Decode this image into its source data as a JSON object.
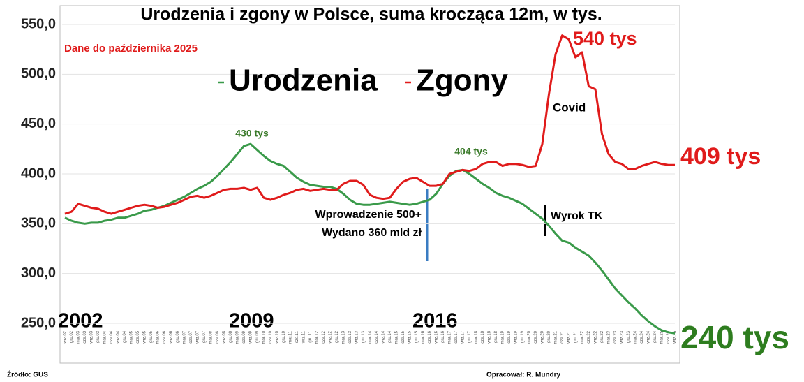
{
  "chart_data": {
    "type": "line",
    "title": "Urodzenia i zgony w Polsce, suma krocząca 12m, w tys.",
    "subtitle": "Dane do października 2025",
    "categories": [
      "wrz.02",
      "gru.02",
      "mar.03",
      "cze.03",
      "wrz.03",
      "gru.03",
      "mar.04",
      "cze.04",
      "wrz.04",
      "gru.04",
      "mar.05",
      "cze.05",
      "wrz.05",
      "gru.05",
      "mar.06",
      "cze.06",
      "wrz.06",
      "gru.06",
      "mar.07",
      "cze.07",
      "wrz.07",
      "gru.07",
      "mar.08",
      "cze.08",
      "wrz.08",
      "gru.08",
      "mar.09",
      "cze.09",
      "wrz.09",
      "gru.09",
      "mar.10",
      "cze.10",
      "wrz.10",
      "gru.10",
      "mar.11",
      "cze.11",
      "wrz.11",
      "gru.11",
      "mar.12",
      "cze.12",
      "wrz.12",
      "gru.12",
      "mar.13",
      "cze.13",
      "wrz.13",
      "gru.13",
      "mar.14",
      "cze.14",
      "wrz.14",
      "gru.14",
      "mar.15",
      "cze.15",
      "wrz.15",
      "gru.15",
      "mar.16",
      "cze.16",
      "wrz.16",
      "gru.16",
      "mar.17",
      "cze.17",
      "wrz.17",
      "gru.17",
      "mar.18",
      "cze.18",
      "wrz.18",
      "gru.18",
      "mar.19",
      "cze.19",
      "wrz.19",
      "gru.19",
      "mar.20",
      "cze.20",
      "wrz.20",
      "gru.20",
      "mar.21",
      "cze.21",
      "wrz.21",
      "gru.21",
      "mar.22",
      "cze.22",
      "wrz.22",
      "gru.22",
      "mar.23",
      "cze.23",
      "wrz.23",
      "gru.23",
      "mar.24",
      "cze.24",
      "wrz.24",
      "gru.24",
      "mar.25",
      "cze.25",
      "wrz.25"
    ],
    "series": [
      {
        "name": "Urodzenia",
        "color": "#3a9a4a",
        "values": [
          356,
          353,
          351,
          350,
          351,
          351,
          353,
          354,
          356,
          356,
          358,
          360,
          363,
          364,
          366,
          368,
          371,
          374,
          377,
          381,
          385,
          388,
          392,
          398,
          405,
          412,
          420,
          428,
          430,
          424,
          418,
          413,
          410,
          408,
          402,
          396,
          392,
          389,
          388,
          387,
          387,
          385,
          380,
          374,
          370,
          369,
          369,
          370,
          371,
          372,
          371,
          370,
          369,
          370,
          372,
          374,
          380,
          390,
          398,
          403,
          404,
          400,
          395,
          390,
          386,
          381,
          378,
          376,
          373,
          370,
          365,
          360,
          355,
          348,
          340,
          333,
          331,
          326,
          322,
          318,
          311,
          303,
          294,
          285,
          278,
          271,
          265,
          258,
          252,
          247,
          243,
          241,
          240
        ]
      },
      {
        "name": "Zgony",
        "color": "#e01b1b",
        "values": [
          360,
          362,
          370,
          368,
          366,
          365,
          362,
          360,
          362,
          364,
          366,
          368,
          369,
          368,
          366,
          367,
          369,
          371,
          374,
          377,
          378,
          376,
          378,
          381,
          384,
          385,
          385,
          386,
          384,
          386,
          376,
          374,
          376,
          379,
          381,
          384,
          385,
          383,
          384,
          385,
          384,
          384,
          390,
          393,
          393,
          389,
          379,
          376,
          375,
          376,
          385,
          392,
          395,
          396,
          392,
          388,
          388,
          390,
          400,
          402,
          404,
          403,
          405,
          410,
          412,
          412,
          408,
          410,
          410,
          409,
          407,
          408,
          430,
          480,
          520,
          539,
          535,
          517,
          522,
          488,
          485,
          440,
          420,
          412,
          410,
          405,
          405,
          408,
          410,
          412,
          410,
          409,
          409
        ]
      }
    ],
    "ylim": [
      250,
      550
    ],
    "yticks": [
      {
        "value": 250,
        "label": "250,0"
      },
      {
        "value": 300,
        "label": "300,0"
      },
      {
        "value": 350,
        "label": "350,0"
      },
      {
        "value": 400,
        "label": "400,0"
      },
      {
        "value": 450,
        "label": "450,0"
      },
      {
        "value": 500,
        "label": "500,0"
      },
      {
        "value": 550,
        "label": "550,0"
      }
    ],
    "grid": true,
    "annotations": {
      "peak_births": "430 tys",
      "births_2017": "404 tys",
      "peak_deaths": "540 tys",
      "last_deaths": "409 tys",
      "last_births": "240 tys",
      "covid": "Covid",
      "program_1": "Wprowadzenie 500+",
      "program_2": "Wydano 360 mld zł",
      "ruling": "Wyrok TK",
      "year_1": "2002",
      "year_2": "2009",
      "year_3": "2016"
    },
    "source": "Źródło: GUS",
    "author": "Opracował: R. Mundry"
  }
}
